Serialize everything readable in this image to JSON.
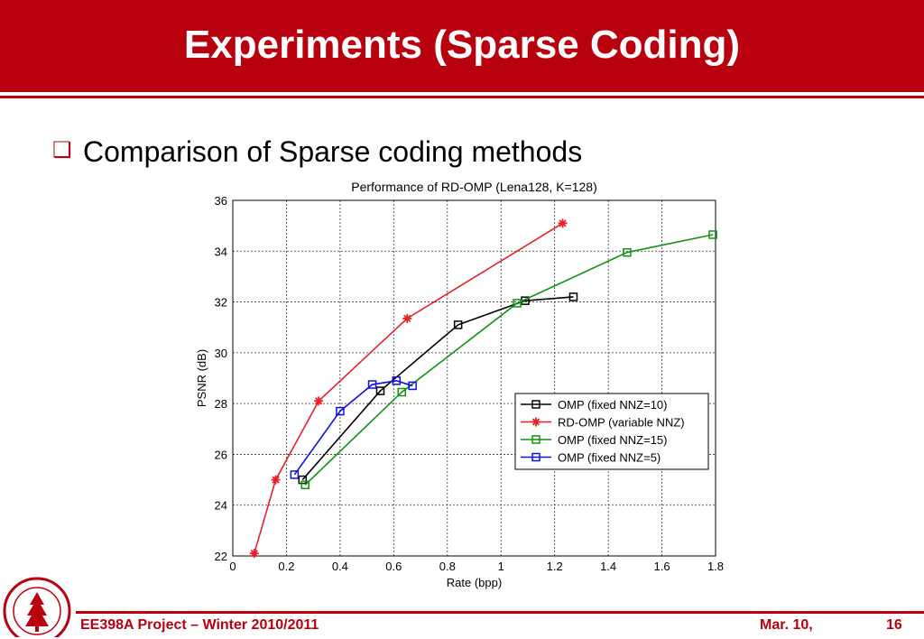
{
  "slide": {
    "title": "Experiments (Sparse Coding)",
    "bullet": "Comparison of Sparse coding methods",
    "bullet_icon": "square-bullet-icon",
    "accent_color": "#b9000e"
  },
  "footer": {
    "course": "EE398A Project – Winter 2010/2011",
    "date": "Mar. 10,",
    "page": "16",
    "seal_text": "LELAND STANFORD JUNIOR UNIVERSITY"
  },
  "chart_data": {
    "type": "line",
    "title": "Performance of RD-OMP (Lena128, K=128)",
    "xlabel": "Rate (bpp)",
    "ylabel": "PSNR (dB)",
    "xlim": [
      0,
      1.8
    ],
    "ylim": [
      22,
      36
    ],
    "xticks": [
      "0",
      "0.2",
      "0.4",
      "0.6",
      "0.8",
      "1",
      "1.2",
      "1.4",
      "1.6",
      "1.8"
    ],
    "yticks": [
      "22",
      "24",
      "26",
      "28",
      "30",
      "32",
      "34",
      "36"
    ],
    "grid": true,
    "legend_position": "lower-right",
    "series": [
      {
        "name": "OMP (fixed NNZ=10)",
        "color": "#000000",
        "marker": "square",
        "x": [
          0.26,
          0.55,
          0.84,
          1.09,
          1.27
        ],
        "y": [
          25.0,
          28.5,
          31.1,
          32.05,
          32.2
        ]
      },
      {
        "name": "RD-OMP (variable NNZ)",
        "color": "#e8202a",
        "marker": "star",
        "x": [
          0.08,
          0.16,
          0.32,
          0.65,
          1.23
        ],
        "y": [
          22.1,
          25.0,
          28.1,
          31.35,
          35.1
        ]
      },
      {
        "name": "OMP (fixed NNZ=15)",
        "color": "#129212",
        "marker": "square",
        "x": [
          0.27,
          0.63,
          1.06,
          1.47,
          1.79
        ],
        "y": [
          24.8,
          28.45,
          31.95,
          33.95,
          34.65
        ]
      },
      {
        "name": "OMP (fixed NNZ=5)",
        "color": "#1010e0",
        "marker": "square",
        "x": [
          0.23,
          0.4,
          0.52,
          0.61,
          0.67
        ],
        "y": [
          25.2,
          27.7,
          28.75,
          28.9,
          28.7
        ]
      }
    ]
  }
}
